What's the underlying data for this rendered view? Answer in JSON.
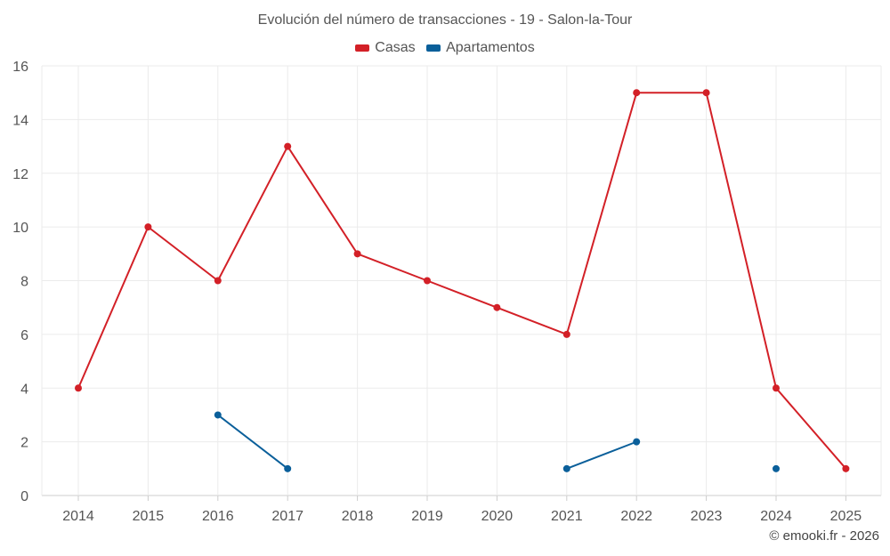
{
  "chart_data": {
    "type": "line",
    "title": "Evolución del número de transacciones - 19 - Salon-la-Tour",
    "categories": [
      "2014",
      "2015",
      "2016",
      "2017",
      "2018",
      "2019",
      "2020",
      "2021",
      "2022",
      "2023",
      "2024",
      "2025"
    ],
    "series": [
      {
        "name": "Casas",
        "color": "#d32027",
        "values": [
          4,
          10,
          8,
          13,
          9,
          8,
          7,
          6,
          15,
          15,
          4,
          1
        ]
      },
      {
        "name": "Apartamentos",
        "color": "#0a5f9a",
        "values": [
          null,
          null,
          3,
          1,
          null,
          null,
          null,
          1,
          2,
          null,
          1,
          null
        ]
      }
    ],
    "ylim": [
      0,
      16
    ],
    "yticks": [
      0,
      2,
      4,
      6,
      8,
      10,
      12,
      14,
      16
    ],
    "grid": true,
    "legend_position": "top-center",
    "xlabel": "",
    "ylabel": ""
  },
  "credit": "© emooki.fr - 2026"
}
